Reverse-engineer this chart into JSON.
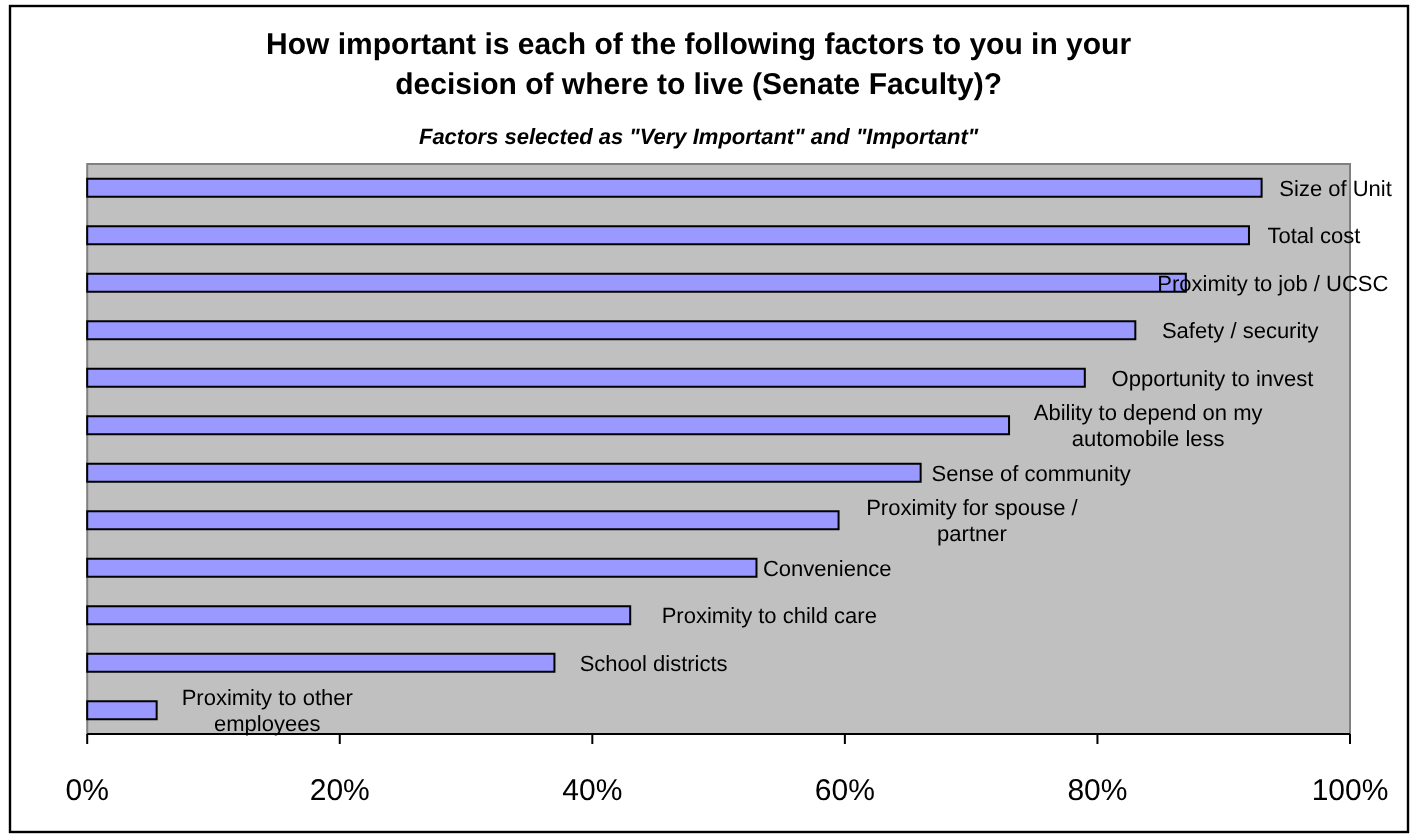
{
  "chart_data": {
    "type": "bar",
    "orientation": "horizontal",
    "title": "How important is each of the following factors to you in your decision of where to live (Senate Faculty)?",
    "subtitle": "Factors selected as \"Very Important\" and \"Important\"",
    "categories": [
      "Size of Unit",
      "Total cost",
      "Proximity to job / UCSC",
      "Safety / security",
      "Opportunity to invest",
      "Ability to depend on my automobile less",
      "Sense of community",
      "Proximity for spouse / partner",
      "Convenience",
      "Proximity to child care",
      "School districts",
      "Proximity to other employees"
    ],
    "values": [
      93,
      92,
      87,
      83,
      79,
      73,
      66,
      59.5,
      53,
      43,
      37,
      5.5
    ],
    "color": "#9999ff",
    "xlim": [
      0,
      100
    ],
    "xticks": [
      {
        "value": 0,
        "label": "0%"
      },
      {
        "value": 20,
        "label": "20%"
      },
      {
        "value": 40,
        "label": "40%"
      },
      {
        "value": 60,
        "label": "60%"
      },
      {
        "value": 80,
        "label": "80%"
      },
      {
        "value": 100,
        "label": "100%"
      }
    ],
    "grid": false
  }
}
